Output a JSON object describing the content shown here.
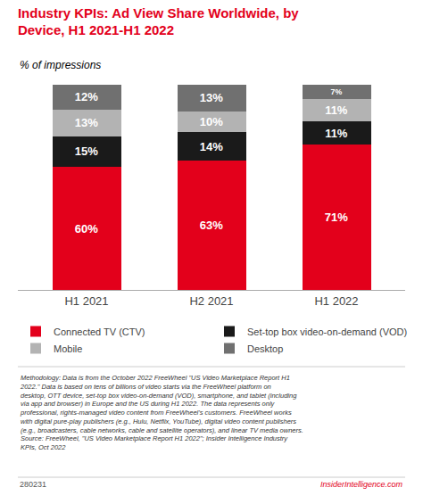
{
  "chart_data": {
    "type": "bar",
    "stacked": true,
    "title": "Industry KPIs: Ad View Share Worldwide, by\nDevice, H1 2021-H1 2022",
    "subtitle": "% of impressions",
    "categories": [
      "H1 2021",
      "H2 2021",
      "H1 2022"
    ],
    "series": [
      {
        "name": "Connected TV (CTV)",
        "color": "#e3001b",
        "values": [
          60,
          63,
          71
        ],
        "value_labels": [
          "60%",
          "63%",
          "71%"
        ]
      },
      {
        "name": "Set-top box video-on-demand (VOD)",
        "color": "#1a1a1a",
        "values": [
          15,
          14,
          11
        ],
        "value_labels": [
          "15%",
          "14%",
          "11%"
        ]
      },
      {
        "name": "Mobile",
        "color": "#b3b3b3",
        "values": [
          13,
          10,
          11
        ],
        "value_labels": [
          "13%",
          "10%",
          "11%"
        ]
      },
      {
        "name": "Desktop",
        "color": "#707070",
        "values": [
          12,
          13,
          7
        ],
        "value_labels": [
          "12%",
          "13%",
          "7%"
        ]
      }
    ],
    "ylim": [
      0,
      100
    ],
    "yticks": [],
    "tick_labels": "x",
    "grid": false,
    "legend": "bottom",
    "data_labels": true,
    "annotations": [
      "Methodology: Data is from the October 2022 FreeWheel \"US Video Marketplace Report H1\n2022.\" Data is based on tens of billions of video starts via the FreeWheel platform on\ndesktop, OTT device, set-top box video-on-demand (VOD), smartphone, and tablet (including\nvia app and browser) in Europe and the US during H1 2022. The data represents only\nprofessional, rights-managed video content from FreeWheel's customers. FreeWheel works\nwith digital pure-play publishers (e.g., Hulu, Netflix, YouTube), digital video content publishers\n(e.g., broadcasters, cable networks, cable and satellite operators), and linear TV media owners.\nSource: FreeWheel, \"US Video Marketplace Report H1 2022\"; Insider Intelligence Industry\nKPIs, Oct 2022",
      "280231",
      "InsiderIntelligence.com"
    ]
  }
}
